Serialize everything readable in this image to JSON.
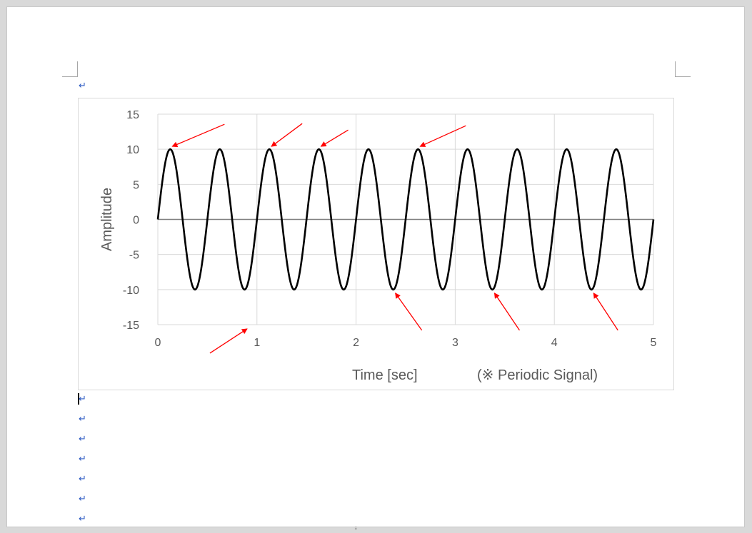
{
  "document": {
    "paragraph_mark": "↵",
    "paragraph_marks_after_chart": 7
  },
  "chart_data": {
    "type": "line",
    "xlabel": "Time [sec]",
    "xlabel_note": "(※ Periodic Signal)",
    "ylabel": "Amplitude",
    "xlim": [
      0,
      5
    ],
    "ylim": [
      -15,
      15
    ],
    "x_ticks": [
      0,
      1,
      2,
      3,
      4,
      5
    ],
    "y_ticks": [
      15,
      10,
      5,
      0,
      -5,
      -10,
      -15
    ],
    "grid": true,
    "legend": "none",
    "series": [
      {
        "amplitude": 10,
        "frequency_hz": 2,
        "color": "#000000",
        "expression": "y = 10·sin(2π·2·t)",
        "x": [
          0,
          0.125,
          0.25,
          0.375,
          0.5,
          0.625,
          0.75,
          0.875,
          1,
          1.125,
          1.25,
          1.375,
          1.5,
          1.625,
          1.75,
          1.875,
          2,
          2.125,
          2.25,
          2.375,
          2.5,
          2.625,
          2.75,
          2.875,
          3,
          3.125,
          3.25,
          3.375,
          3.5,
          3.625,
          3.75,
          3.875,
          4,
          4.125,
          4.25,
          4.375,
          4.5,
          4.625,
          4.75,
          4.875,
          5
        ],
        "y": [
          0,
          10,
          0,
          -10,
          0,
          10,
          0,
          -10,
          0,
          10,
          0,
          -10,
          0,
          10,
          0,
          -10,
          0,
          10,
          0,
          -10,
          0,
          10,
          0,
          -10,
          0,
          10,
          0,
          -10,
          0,
          10,
          0,
          -10,
          0,
          10,
          0,
          -10,
          0,
          10,
          0,
          -10,
          0
        ]
      }
    ],
    "annotations": {
      "color": "#ff0000",
      "arrows": [
        {
          "target": [
            0.125,
            10
          ]
        },
        {
          "target": [
            1.125,
            10
          ]
        },
        {
          "target": [
            1.625,
            10
          ]
        },
        {
          "target": [
            2.625,
            10
          ]
        },
        {
          "target": [
            2.375,
            -10
          ]
        },
        {
          "target": [
            3.375,
            -10
          ]
        },
        {
          "target": [
            4.375,
            -10
          ]
        },
        {
          "target": [
            0.9,
            -15.6
          ]
        }
      ]
    }
  }
}
